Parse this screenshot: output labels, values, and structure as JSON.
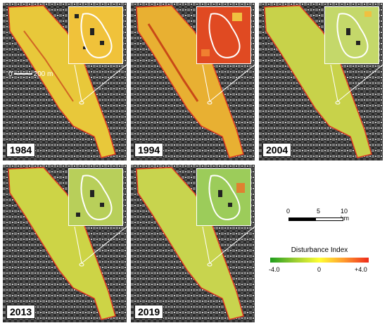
{
  "panels": [
    {
      "year": "1984",
      "tint": "#e8c83a",
      "inset_bg": "#f0c23a"
    },
    {
      "year": "1994",
      "tint": "#e8b032",
      "inset_bg": "#e04a22"
    },
    {
      "year": "2004",
      "tint": "#c8d24a",
      "inset_bg": "#c4d86a"
    },
    {
      "year": "2013",
      "tint": "#cdd446",
      "inset_bg": "#b8cf5a"
    },
    {
      "year": "2019",
      "tint": "#c8d44e",
      "inset_bg": "#9ccc5a"
    }
  ],
  "inset_scale": {
    "zero": "0",
    "length": "200 m"
  },
  "scale_bar": {
    "label_0": "0",
    "label_5": "5",
    "label_10": "10 km"
  },
  "legend": {
    "title": "Disturbance Index",
    "min": "-4.0",
    "mid": "0",
    "max": "+4.0",
    "colors": [
      "#1e9d1e",
      "#9acd32",
      "#ffff33",
      "#ff9a2e",
      "#ee2b1b"
    ]
  }
}
